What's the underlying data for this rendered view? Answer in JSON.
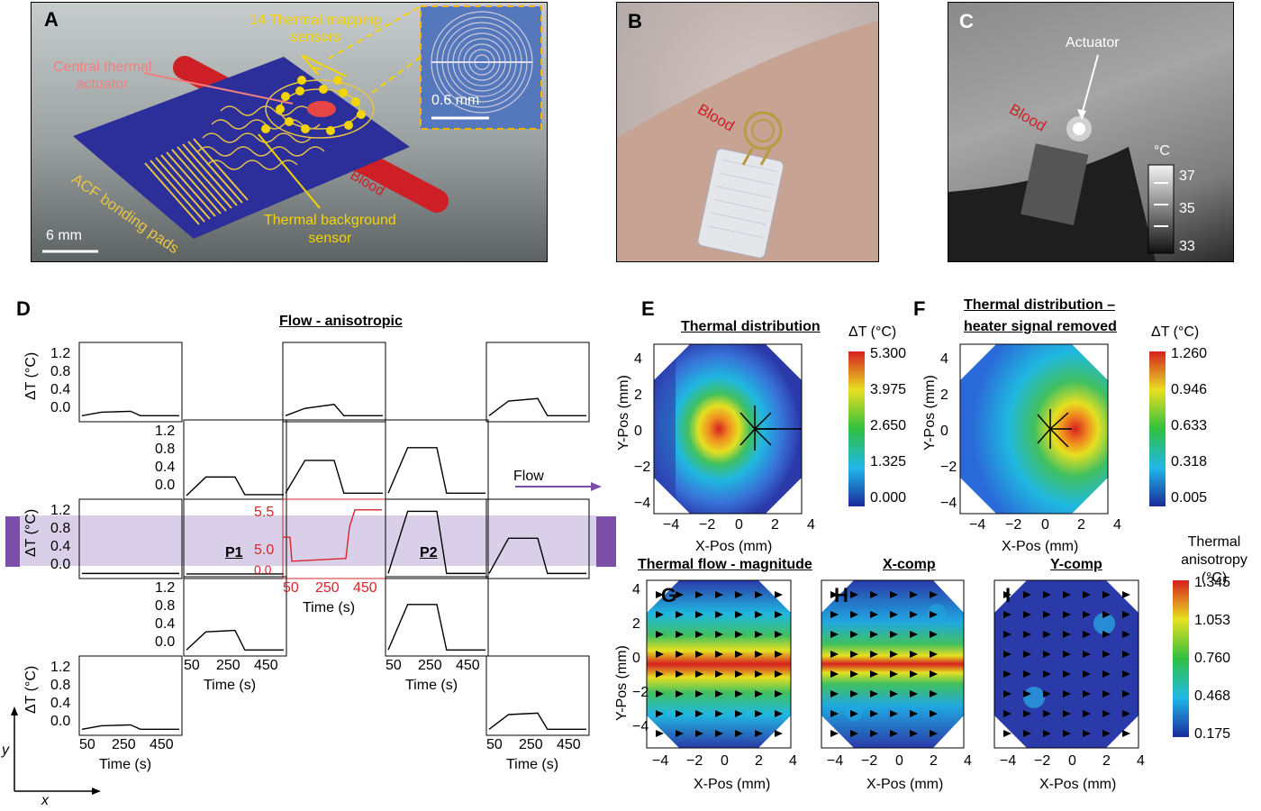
{
  "panels": {
    "A": {
      "label": "A",
      "sensors_label_line1": "14 Thermal mapping",
      "sensors_label_line2": "sensors",
      "actuator_label_line1": "Central thermal",
      "actuator_label_line2": "actuator",
      "pads_label": "ACF bonding pads",
      "blood_label": "Blood",
      "background_label_line1": "Thermal background",
      "background_label_line2": "sensor",
      "scale_main": "6 mm",
      "scale_inset": "0.6 mm"
    },
    "B": {
      "label": "B",
      "blood_label": "Blood"
    },
    "C": {
      "label": "C",
      "actuator_label": "Actuator",
      "blood_label": "Blood",
      "unit": "°C",
      "ticks": [
        "37",
        "35",
        "33"
      ]
    },
    "D": {
      "label": "D",
      "title": "Flow  - anisotropic",
      "ylabel": "ΔT (°C)",
      "yticks": [
        "1.2",
        "0.8",
        "0.4",
        "0.0"
      ],
      "xticks": [
        "50",
        "250",
        "450"
      ],
      "xlabel": "Time (s)",
      "center_yticks": [
        "5.5",
        "5.0",
        "0.0"
      ],
      "p1": "P1",
      "p2": "P2",
      "flow_label": "Flow",
      "axis_y": "y",
      "axis_x": "x"
    },
    "E": {
      "label": "E",
      "title": "Thermal distribution",
      "unit": "ΔT (°C)",
      "cbar": [
        "5.300",
        "3.975",
        "2.650",
        "1.325",
        "0.000"
      ],
      "xlabel": "X-Pos (mm)",
      "ylabel": "Y-Pos (mm)",
      "ticks": [
        "−4",
        "−2",
        "0",
        "2",
        "4"
      ],
      "yticks": [
        "4",
        "2",
        "0",
        "−2",
        "−4"
      ]
    },
    "F": {
      "label": "F",
      "title_line1": "Thermal distribution –",
      "title_line2": "heater signal removed",
      "unit": "ΔT (°C)",
      "cbar": [
        "1.260",
        "0.946",
        "0.633",
        "0.318",
        "0.005"
      ],
      "xlabel": "X-Pos (mm)",
      "ylabel": "Y-Pos (mm)",
      "ticks": [
        "−4",
        "−2",
        "0",
        "2",
        "4"
      ],
      "yticks": [
        "4",
        "2",
        "0",
        "−2",
        "−4"
      ]
    },
    "G": {
      "label": "G",
      "title": "Thermal flow - magnitude",
      "xlabel": "X-Pos (mm)",
      "ylabel": "Y-Pos (mm)"
    },
    "H": {
      "label": "H",
      "title": "X-comp",
      "xlabel": "X-Pos (mm)"
    },
    "I": {
      "label": "I",
      "title": "Y-comp",
      "xlabel": "X-Pos (mm)"
    },
    "GHI": {
      "cbar_title_line1": "Thermal",
      "cbar_title_line2": "anisotropy (°C)",
      "cbar": [
        "1.345",
        "1.053",
        "0.760",
        "0.468",
        "0.175"
      ],
      "ticks": [
        "−4",
        "−2",
        "0",
        "2",
        "4"
      ],
      "yticks": [
        "4",
        "2",
        "0",
        "−2",
        "−4"
      ]
    }
  },
  "colors": {
    "blue_substrate": "#2c2f9a",
    "gold": "#e8c547",
    "red": "#d9242a",
    "purple": "#7b4fa8",
    "lavender": "#d9cfe8"
  },
  "chart_data": [
    {
      "type": "line",
      "title": "Flow  - anisotropic",
      "xlabel": "Time (s)",
      "ylabel": "ΔT (°C)",
      "xlim": [
        0,
        500
      ],
      "ylim": [
        0,
        1.4
      ],
      "series": [
        {
          "grid_pos": "r0c0",
          "x": [
            0,
            100,
            250,
            300,
            500
          ],
          "values": [
            0.05,
            0.12,
            0.14,
            0.05,
            0.05
          ]
        },
        {
          "grid_pos": "r0c2",
          "x": [
            0,
            100,
            250,
            300,
            500
          ],
          "values": [
            0.05,
            0.2,
            0.28,
            0.05,
            0.05
          ]
        },
        {
          "grid_pos": "r0c4",
          "x": [
            0,
            100,
            250,
            300,
            500
          ],
          "values": [
            0.05,
            0.35,
            0.4,
            0.05,
            0.05
          ]
        },
        {
          "grid_pos": "r1c1",
          "x": [
            0,
            100,
            250,
            300,
            500
          ],
          "values": [
            0.0,
            0.38,
            0.38,
            0.02,
            0.02
          ]
        },
        {
          "grid_pos": "r1c2",
          "x": [
            0,
            100,
            250,
            300,
            500
          ],
          "values": [
            0.05,
            0.72,
            0.72,
            0.05,
            0.05
          ]
        },
        {
          "grid_pos": "r1c3",
          "x": [
            0,
            100,
            250,
            300,
            500
          ],
          "values": [
            0.05,
            0.98,
            0.98,
            0.05,
            0.05
          ]
        },
        {
          "grid_pos": "r2c0",
          "x": [
            0,
            500
          ],
          "values": [
            0.03,
            0.03
          ]
        },
        {
          "grid_pos": "r2c1",
          "x": [
            0,
            500
          ],
          "values": [
            0.02,
            0.02
          ]
        },
        {
          "grid_pos": "r2c3",
          "x": [
            0,
            100,
            250,
            300,
            500
          ],
          "values": [
            0.03,
            1.3,
            1.3,
            0.03,
            0.03
          ]
        },
        {
          "grid_pos": "r2c4",
          "x": [
            0,
            100,
            250,
            300,
            500
          ],
          "values": [
            0.03,
            0.75,
            0.75,
            0.03,
            0.03
          ]
        },
        {
          "grid_pos": "r3c1",
          "x": [
            0,
            100,
            250,
            300,
            500
          ],
          "values": [
            0.05,
            0.42,
            0.45,
            0.05,
            0.05
          ]
        },
        {
          "grid_pos": "r3c3",
          "x": [
            0,
            100,
            250,
            300,
            500
          ],
          "values": [
            0.05,
            0.98,
            0.98,
            0.05,
            0.05
          ]
        },
        {
          "grid_pos": "r4c0",
          "x": [
            0,
            100,
            250,
            300,
            500
          ],
          "values": [
            0.05,
            0.12,
            0.14,
            0.05,
            0.05
          ]
        },
        {
          "grid_pos": "r4c4",
          "x": [
            0,
            100,
            250,
            300,
            500
          ],
          "values": [
            0.05,
            0.35,
            0.38,
            0.05,
            0.05
          ]
        }
      ]
    }
  ]
}
